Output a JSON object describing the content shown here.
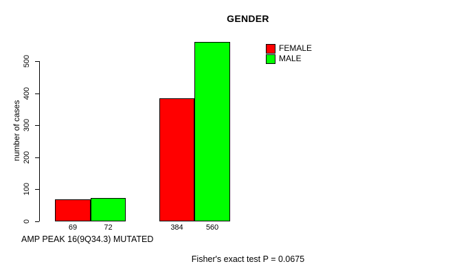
{
  "chart_data": {
    "type": "bar",
    "title": "GENDER",
    "ylabel": "number of cases",
    "xlabel": "AMP PEAK 16(9Q34.3) MUTATED",
    "footnote": "Fisher's exact test P = 0.0675",
    "categories": [
      "",
      ""
    ],
    "series": [
      {
        "name": "FEMALE",
        "color": "#ff0000",
        "values": [
          69,
          384
        ]
      },
      {
        "name": "MALE",
        "color": "#00ff00",
        "values": [
          72,
          560
        ]
      }
    ],
    "bar_value_labels": [
      [
        "69",
        "72"
      ],
      [
        "384",
        "560"
      ]
    ],
    "yticks": [
      0,
      100,
      200,
      300,
      400,
      500
    ],
    "ylim": [
      0,
      583
    ],
    "grid": false,
    "legend_position": "top-right",
    "colors": {
      "background": "#ffffff",
      "axis": "#000000",
      "text": "#000000"
    }
  }
}
